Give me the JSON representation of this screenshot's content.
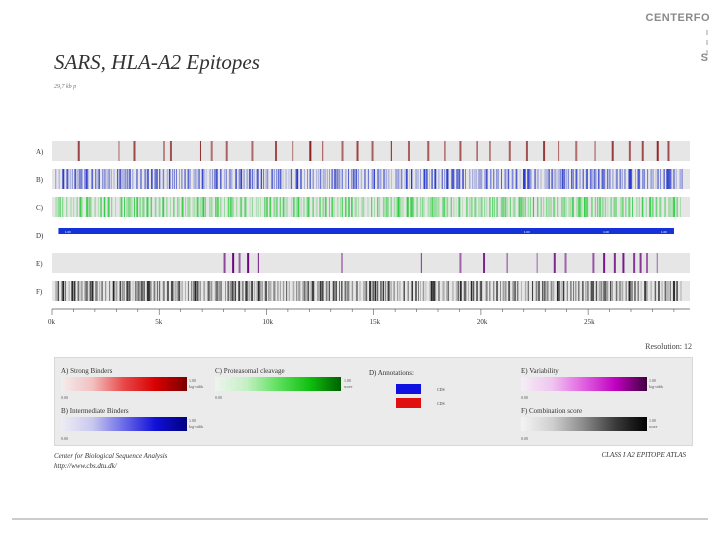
{
  "logo": {
    "text": "CENTERFO",
    "edge_glyph": "S"
  },
  "title": "SARS, HLA-A2 Epitopes",
  "subtitle": "29,7 kb p",
  "resolution_text": "Resolution: 12",
  "colors": {
    "strong": "#8b1a1a",
    "intermediate": "#2a3acc",
    "cleavage": "#2ecc40",
    "cds": "#1432d8",
    "variability": "#6a0080",
    "combination": "#222222",
    "track_bg": "#e6e6e6"
  },
  "chart_data": {
    "type": "heatmap",
    "title": "SARS, HLA-A2 Epitopes",
    "xlabel": "Genome position",
    "xlim": [
      0,
      29751
    ],
    "x_ticks": [
      "0k",
      "5k",
      "10k",
      "15k",
      "20k",
      "25k"
    ],
    "tracks": [
      {
        "label": "A)",
        "name": "Strong Binders",
        "positions": [
          1200,
          3100,
          3800,
          5200,
          5500,
          6900,
          7400,
          8100,
          9300,
          10400,
          11200,
          12000,
          12600,
          13500,
          14200,
          14900,
          15800,
          16600,
          17500,
          18300,
          19000,
          19800,
          20400,
          21300,
          22100,
          22900,
          23600,
          24400,
          25300,
          26100,
          26900,
          27500,
          28200,
          28700
        ]
      },
      {
        "label": "B)",
        "name": "Intermediate Binders",
        "density": "dense"
      },
      {
        "label": "C)",
        "name": "Proteasomal cleavage",
        "density": "dense"
      },
      {
        "label": "D)",
        "name": "Annotations",
        "segments": [
          {
            "start": 300,
            "end": 29000,
            "text": "1.00",
            "text_at": 600
          },
          {
            "start": 21800,
            "end": 26100,
            "text": "1.00",
            "text_at": 22000
          },
          {
            "start": 26100,
            "end": 26700,
            "text": "1.00",
            "text_at": 25700
          },
          {
            "start": 26900,
            "end": 27400,
            "text": "",
            "text_at": 0
          },
          {
            "start": 27600,
            "end": 28100,
            "text": "",
            "text_at": 0
          },
          {
            "start": 28300,
            "end": 29000,
            "text": "1.00",
            "text_at": 28400
          }
        ]
      },
      {
        "label": "E)",
        "name": "Variability",
        "positions": [
          8000,
          8400,
          8700,
          9100,
          9600,
          13500,
          17200,
          19000,
          20100,
          21200,
          22600,
          23400,
          23900,
          25200,
          25700,
          26200,
          26600,
          27100,
          27400,
          27700,
          28200
        ]
      },
      {
        "label": "F)",
        "name": "Combination score",
        "density": "dense"
      }
    ],
    "legend": [
      {
        "title": "A) Strong Binders",
        "min": "0.00",
        "max": "1.00",
        "max_note": "log-odds"
      },
      {
        "title": "B) Intermediate Binders",
        "min": "0.00",
        "max": "1.00",
        "max_note": "log-odds"
      },
      {
        "title": "C) Proteasomal cleavage",
        "min": "0.00",
        "max": "1.00",
        "max_note": "score"
      },
      {
        "title": "D) Annotations:",
        "items": [
          "CDS",
          "CDS"
        ]
      },
      {
        "title": "E) Variability",
        "min": "0.00",
        "max": "1.00",
        "max_note": "log-odds"
      },
      {
        "title": "F) Combination score",
        "min": "0.00",
        "max": "1.00",
        "max_note": "score"
      }
    ]
  },
  "footer": {
    "left_line1": "Center for Biological Sequence Analysis",
    "left_line2": "http://www.cbs.dtu.dk/",
    "right": "CLASS I A2 EPITOPE ATLAS"
  }
}
